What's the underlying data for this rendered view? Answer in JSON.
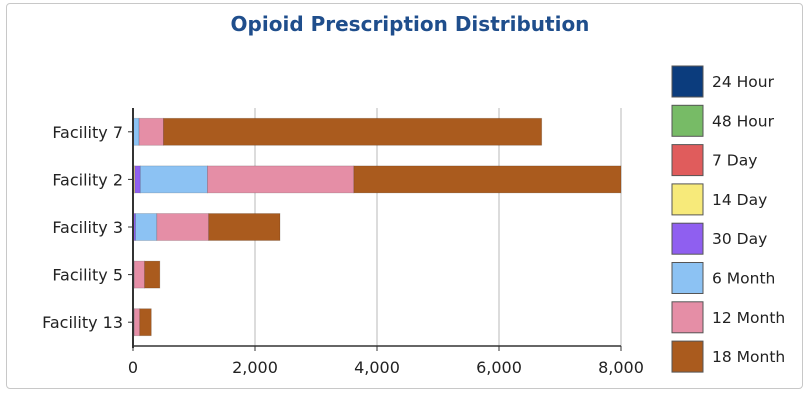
{
  "chart_data": {
    "type": "bar",
    "orientation": "horizontal",
    "stacked": true,
    "title": "Opioid Prescription Distribution",
    "xlabel": "",
    "ylabel": "",
    "categories": [
      "Facility 7",
      "Facility 2",
      "Facility 3",
      "Facility 5",
      "Facility 13"
    ],
    "xlim": [
      0,
      8000
    ],
    "x_ticks": [
      0,
      2000,
      4000,
      6000,
      8000
    ],
    "x_tick_labels": [
      "0",
      "2,000",
      "4,000",
      "6,000",
      "8,000"
    ],
    "grid": "vertical",
    "legend_position": "right",
    "series": [
      {
        "name": "24 Hour",
        "color": "#0b3c7d",
        "values": [
          0,
          0,
          0,
          0,
          0
        ]
      },
      {
        "name": "48 Hour",
        "color": "#77bb66",
        "values": [
          0,
          0,
          0,
          0,
          0
        ]
      },
      {
        "name": "7 Day",
        "color": "#e05c5c",
        "values": [
          0,
          0,
          0,
          0,
          0
        ]
      },
      {
        "name": "14 Day",
        "color": "#f7ea7a",
        "values": [
          0,
          30,
          0,
          0,
          0
        ]
      },
      {
        "name": "30 Day",
        "color": "#8f5ff0",
        "values": [
          0,
          90,
          40,
          0,
          0
        ]
      },
      {
        "name": "6 Month",
        "color": "#8cc2f3",
        "values": [
          100,
          1100,
          350,
          20,
          20
        ]
      },
      {
        "name": "12 Month",
        "color": "#e58ea6",
        "values": [
          400,
          2400,
          850,
          170,
          90
        ]
      },
      {
        "name": "18 Month",
        "color": "#aa5b1e",
        "values": [
          6200,
          4380,
          1170,
          250,
          190
        ]
      }
    ]
  }
}
